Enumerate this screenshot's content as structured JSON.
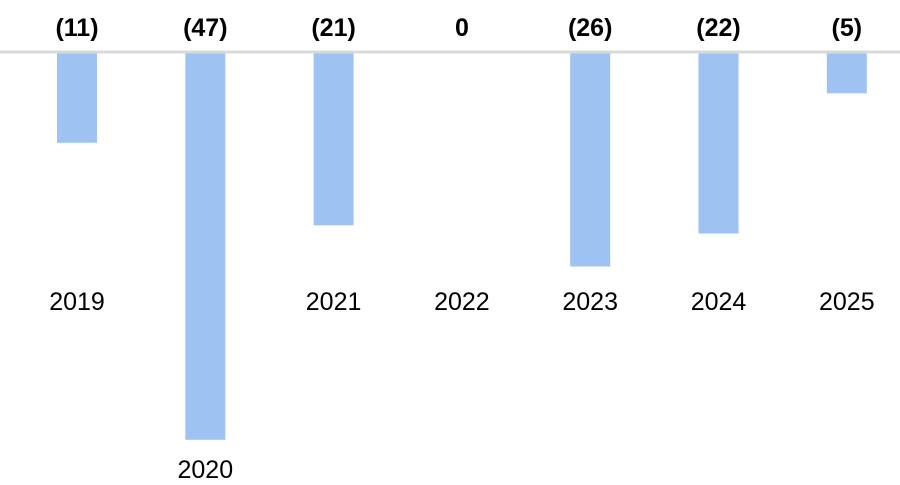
{
  "chart_data": {
    "type": "bar",
    "categories": [
      "2019",
      "2020",
      "2021",
      "2022",
      "2023",
      "2024",
      "2025"
    ],
    "values": [
      -11,
      -47,
      -21,
      0,
      -26,
      -22,
      -5
    ],
    "data_labels": [
      "(11)",
      "(47)",
      "(21)",
      "0",
      "(26)",
      "(22)",
      "(5)"
    ],
    "title": "",
    "xlabel": "",
    "ylabel": "",
    "ylim": [
      -47,
      0
    ],
    "grid": false,
    "legend": "none",
    "colors": {
      "bar": "#9ec2f2",
      "baseline": "#d9d9d9",
      "text": "#000000"
    }
  }
}
